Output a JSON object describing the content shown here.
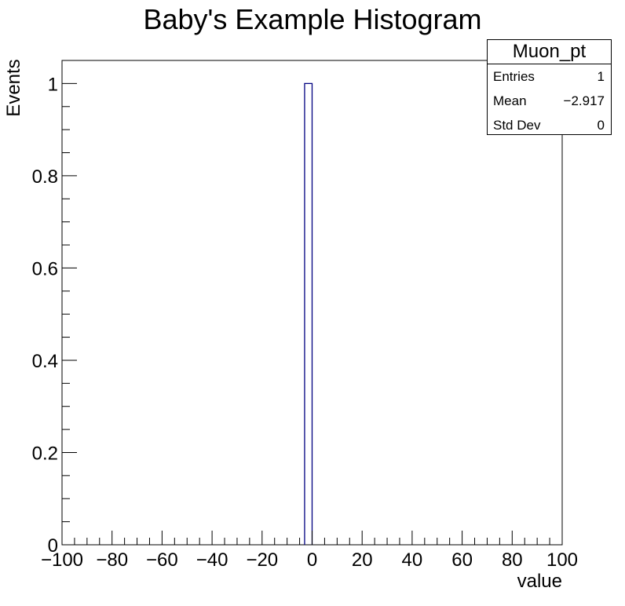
{
  "chart_data": {
    "type": "bar",
    "title": "Baby's Example Histogram",
    "xlabel": "value",
    "ylabel": "Events",
    "xlim": [
      -100,
      100
    ],
    "ylim": [
      0,
      1.05
    ],
    "bin_width": 3,
    "bins": [
      {
        "x_low": -3,
        "x_high": 0,
        "value": 1
      }
    ],
    "x_ticks": [
      "−100",
      "−80",
      "−60",
      "−40",
      "−20",
      "0",
      "20",
      "40",
      "60",
      "80",
      "100"
    ],
    "x_tick_values": [
      -100,
      -80,
      -60,
      -40,
      -20,
      0,
      20,
      40,
      60,
      80,
      100
    ],
    "y_ticks": [
      "0",
      "0.2",
      "0.4",
      "0.6",
      "0.8",
      "1"
    ],
    "y_tick_values": [
      0,
      0.2,
      0.4,
      0.6,
      0.8,
      1
    ],
    "series_color": "#000080"
  },
  "stats_box": {
    "name": "Muon_pt",
    "entries_label": "Entries",
    "entries_value": "1",
    "mean_label": "Mean",
    "mean_value": "−2.917",
    "stddev_label": "Std Dev",
    "stddev_value": "0"
  }
}
